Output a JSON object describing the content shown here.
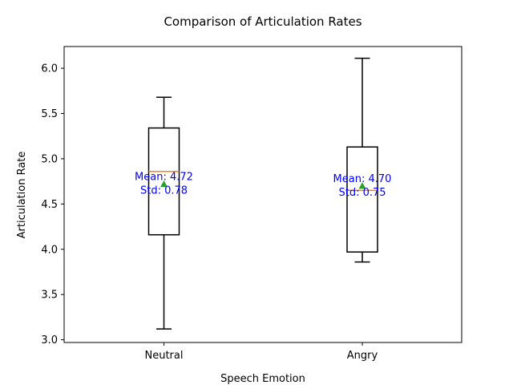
{
  "chart_data": {
    "type": "box",
    "title": "Comparison of Articulation Rates",
    "xlabel": "Speech Emotion",
    "ylabel": "Articulation Rate",
    "ylim": [
      2.97,
      6.24
    ],
    "yticks": [
      3.0,
      3.5,
      4.0,
      4.5,
      5.0,
      5.5,
      6.0
    ],
    "ytick_labels": [
      "3.0",
      "3.5",
      "4.0",
      "4.5",
      "5.0",
      "5.5",
      "6.0"
    ],
    "categories": [
      "Neutral",
      "Angry"
    ],
    "boxes": [
      {
        "name": "Neutral",
        "whisker_low": 3.12,
        "q1": 4.16,
        "median": 4.86,
        "q3": 5.34,
        "whisker_high": 5.68,
        "mean": 4.72,
        "annotation": [
          "Mean: 4.72",
          "Std: 0.78"
        ]
      },
      {
        "name": "Angry",
        "whisker_low": 3.86,
        "q1": 3.97,
        "median": 4.65,
        "q3": 5.13,
        "whisker_high": 6.11,
        "mean": 4.7,
        "annotation": [
          "Mean: 4.70",
          "Std: 0.75"
        ]
      }
    ],
    "colors": {
      "box": "#000000",
      "median": "#ff7f0e",
      "mean_marker": "#2ca02c",
      "annotation": "#0000ff"
    },
    "grid": false
  }
}
